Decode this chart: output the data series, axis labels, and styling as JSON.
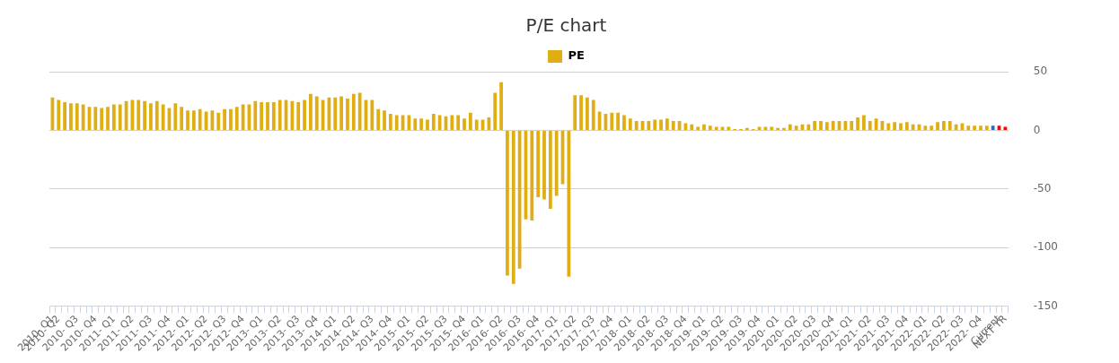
{
  "chart_data": {
    "type": "bar",
    "title": "P/E chart",
    "categories": [
      "2010- Q1",
      "2010- Q2",
      null,
      null,
      "2010- Q3",
      null,
      null,
      "2010- Q4",
      null,
      null,
      "2011- Q1",
      null,
      null,
      "2011- Q2",
      null,
      null,
      "2011- Q3",
      null,
      null,
      "2011- Q4",
      null,
      null,
      "2012- Q1",
      null,
      null,
      "2012- Q2",
      null,
      null,
      "2012- Q3",
      null,
      null,
      "2012- Q4",
      null,
      null,
      "2013- Q1",
      null,
      null,
      "2013- Q2",
      null,
      null,
      "2013- Q3",
      null,
      null,
      "2013- Q4",
      null,
      null,
      "2014- Q1",
      null,
      null,
      "2014- Q2",
      null,
      null,
      "2014- Q3",
      null,
      null,
      "2014- Q4",
      null,
      null,
      "2015- Q1",
      null,
      null,
      "2015- Q2",
      null,
      null,
      "2015- Q3",
      null,
      null,
      "2015- Q4",
      null,
      null,
      "2016- Q1",
      null,
      null,
      "2016- Q2",
      null,
      null,
      "2016- Q3",
      null,
      null,
      "2016- Q4",
      null,
      null,
      "2017- Q1",
      null,
      null,
      "2017- Q2",
      null,
      null,
      "2017- Q3",
      null,
      null,
      "2017- Q4",
      null,
      null,
      "2018- Q1",
      null,
      null,
      "2018- Q2",
      null,
      null,
      "2018- Q3",
      null,
      null,
      "2018- Q4",
      null,
      null,
      "2019- Q1",
      null,
      null,
      "2019- Q2",
      null,
      null,
      "2019- Q3",
      null,
      null,
      "2019- Q4",
      null,
      null,
      "2020- Q1",
      null,
      null,
      "2020- Q2",
      null,
      null,
      "2020- Q3",
      null,
      null,
      "2020- Q4",
      null,
      null,
      "2021- Q1",
      null,
      null,
      "2021- Q2",
      null,
      null,
      "2021- Q3",
      null,
      null,
      "2021- Q4",
      null,
      null,
      "2022- Q1",
      null,
      null,
      "2022- Q2",
      null,
      null,
      "2022- Q3",
      null,
      null,
      "2022- Q4",
      null,
      null,
      "Current",
      "NEXT YR"
    ],
    "series": [
      {
        "name": "PE",
        "color": "#e0ad12",
        "colors": [
          "#e0ad12",
          "#e0ad12",
          "#e0ad12",
          "#e0ad12",
          "#e0ad12",
          "#e0ad12",
          "#e0ad12",
          "#e0ad12",
          "#e0ad12",
          "#e0ad12",
          "#e0ad12",
          "#e0ad12",
          "#e0ad12",
          "#e0ad12",
          "#e0ad12",
          "#e0ad12",
          "#e0ad12",
          "#e0ad12",
          "#e0ad12",
          "#e0ad12",
          "#e0ad12",
          "#e0ad12",
          "#e0ad12",
          "#e0ad12",
          "#e0ad12",
          "#e0ad12",
          "#e0ad12",
          "#e0ad12",
          "#e0ad12",
          "#e0ad12",
          "#e0ad12",
          "#e0ad12",
          "#e0ad12",
          "#e0ad12",
          "#e0ad12",
          "#e0ad12",
          "#e0ad12",
          "#e0ad12",
          "#e0ad12",
          "#e0ad12",
          "#e0ad12",
          "#e0ad12",
          "#e0ad12",
          "#e0ad12",
          "#e0ad12",
          "#e0ad12",
          "#e0ad12",
          "#e0ad12",
          "#e0ad12",
          "#e0ad12",
          "#e0ad12",
          "#e0ad12",
          "#e0ad12",
          "#e0ad12",
          "#e0ad12",
          "#e0ad12",
          "#e0ad12",
          "#e0ad12",
          "#e0ad12",
          "#e0ad12",
          "#e0ad12",
          "#e0ad12",
          "#e0ad12",
          "#e0ad12",
          "#e0ad12",
          "#e0ad12",
          "#e0ad12",
          "#e0ad12",
          "#e0ad12",
          "#e0ad12",
          "#e0ad12",
          "#e0ad12",
          "#e0ad12",
          "#e0ad12",
          "#e0ad12",
          "#e0ad12",
          "#e0ad12",
          "#e0ad12",
          "#e0ad12",
          "#e0ad12",
          "#e0ad12",
          "#e0ad12",
          "#e0ad12",
          "#e0ad12",
          "#e0ad12",
          "#e0ad12",
          "#e0ad12",
          "#e0ad12",
          "#e0ad12",
          "#e0ad12",
          "#e0ad12",
          "#e0ad12",
          "#e0ad12",
          "#e0ad12",
          "#e0ad12",
          "#e0ad12",
          "#e0ad12",
          "#e0ad12",
          "#e0ad12",
          "#e0ad12",
          "#e0ad12",
          "#e0ad12",
          "#e0ad12",
          "#e0ad12",
          "#e0ad12",
          "#e0ad12",
          "#e0ad12",
          "#e0ad12",
          "#e0ad12",
          "#e0ad12",
          "#e0ad12",
          "#e0ad12",
          "#e0ad12",
          "#e0ad12",
          "#e0ad12",
          "#e0ad12",
          "#e0ad12",
          "#e0ad12",
          "#e0ad12",
          "#e0ad12",
          "#e0ad12",
          "#e0ad12",
          "#e0ad12",
          "#e0ad12",
          "#e0ad12",
          "#e0ad12",
          "#e0ad12",
          "#e0ad12",
          "#e0ad12",
          "#e0ad12",
          "#e0ad12",
          "#e0ad12",
          "#e0ad12",
          "#e0ad12",
          "#e0ad12",
          "#e0ad12",
          "#e0ad12",
          "#e0ad12",
          "#e0ad12",
          "#e0ad12",
          "#e0ad12",
          "#e0ad12",
          "#e0ad12",
          "#e0ad12",
          "#e0ad12",
          "#e0ad12",
          "#e0ad12",
          "#e0ad12",
          "#e0ad12",
          "#e0ad12",
          "#e0ad12",
          "#e0ad12",
          "#e0ad12",
          "#2b6fae",
          "#ff0000",
          "#ff0000"
        ],
        "values": [
          28,
          26,
          24,
          23,
          23,
          22,
          20,
          20,
          19,
          20,
          22,
          22,
          25,
          26,
          26,
          25,
          23,
          25,
          22,
          19,
          23,
          20,
          17,
          17,
          18,
          16,
          17,
          15,
          18,
          18,
          20,
          22,
          22,
          25,
          24,
          24,
          24,
          26,
          26,
          25,
          24,
          26,
          31,
          29,
          26,
          28,
          28,
          29,
          27,
          31,
          32,
          26,
          26,
          18,
          17,
          14,
          13,
          13,
          13,
          10,
          10,
          9,
          14,
          13,
          12,
          13,
          13,
          10,
          15,
          9,
          9,
          11,
          32,
          41,
          -124,
          -131,
          -118,
          -76,
          -77,
          -57,
          -59,
          -67,
          -56,
          -46,
          -125,
          30,
          30,
          28,
          26,
          16,
          14,
          15,
          15,
          13,
          10,
          8,
          8,
          8,
          9,
          9,
          10,
          8,
          8,
          6,
          5,
          3,
          5,
          4,
          3,
          3,
          3,
          1,
          1,
          2,
          1,
          3,
          3,
          3,
          2,
          2,
          5,
          4,
          5,
          5,
          8,
          8,
          7,
          8,
          8,
          8,
          8,
          11,
          13,
          8,
          10,
          8,
          6,
          7,
          6,
          7,
          5,
          5,
          4,
          4,
          7,
          8,
          8,
          5,
          6,
          4,
          4,
          4,
          4,
          4,
          4,
          3
        ]
      }
    ],
    "ylim": [
      -150,
      50
    ],
    "yticks": [
      50,
      0,
      -50,
      -100,
      -150
    ],
    "grid": "y",
    "legend": "top"
  }
}
